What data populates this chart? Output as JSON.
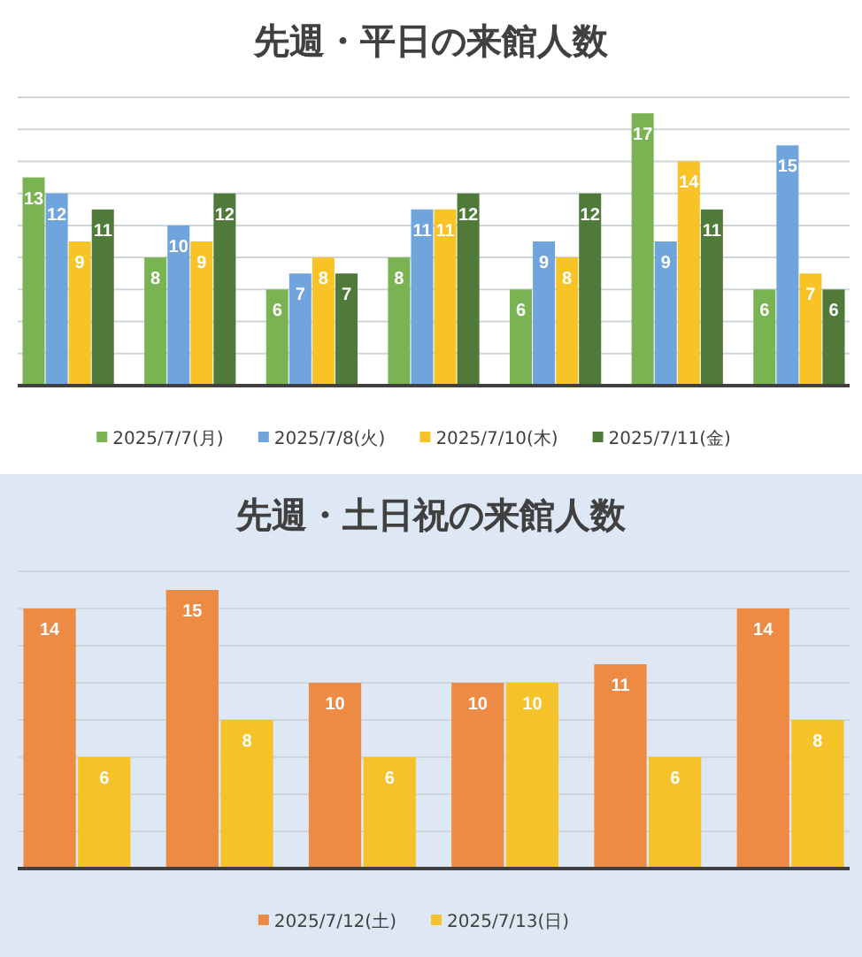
{
  "chart_data": [
    {
      "type": "bar",
      "title": "先週・平日の来館人数",
      "categories": [
        null,
        null,
        null,
        null,
        null,
        null,
        null
      ],
      "series": [
        {
          "name": "2025/7/7(月)",
          "color": "#79b352",
          "values": [
            13,
            8,
            6,
            8,
            6,
            17,
            6
          ]
        },
        {
          "name": "2025/7/8(火)",
          "color": "#6fa5dc",
          "values": [
            12,
            10,
            7,
            11,
            9,
            9,
            15
          ]
        },
        {
          "name": "2025/7/10(木)",
          "color": "#f7c325",
          "values": [
            9,
            9,
            8,
            11,
            8,
            14,
            7
          ]
        },
        {
          "name": "2025/7/11(金)",
          "color": "#4f7a3a",
          "values": [
            11,
            12,
            7,
            12,
            12,
            11,
            6
          ]
        }
      ],
      "ylim": [
        0,
        18
      ],
      "yticks": [
        {
          "value": 0,
          "label": null
        },
        {
          "value": 2,
          "label": null
        },
        {
          "value": 4,
          "label": null
        },
        {
          "value": 6,
          "label": null
        },
        {
          "value": 8,
          "label": null
        },
        {
          "value": 10,
          "label": null
        },
        {
          "value": 12,
          "label": null
        },
        {
          "value": 14,
          "label": null
        },
        {
          "value": 16,
          "label": null
        },
        {
          "value": 18,
          "label": null
        }
      ],
      "grid": "y",
      "legend": "bottom",
      "tick_labels": false,
      "data_labels": true
    },
    {
      "type": "bar",
      "title": "先週・土日祝の来館人数",
      "categories": [
        null,
        null,
        null,
        null,
        null,
        null
      ],
      "series": [
        {
          "name": "2025/7/12(土)",
          "color": "#ed8a44",
          "values": [
            14,
            15,
            10,
            10,
            11,
            14
          ]
        },
        {
          "name": "2025/7/13(日)",
          "color": "#f5c22a",
          "values": [
            6,
            8,
            6,
            10,
            6,
            8
          ]
        }
      ],
      "ylim": [
        0,
        16
      ],
      "yticks": [
        {
          "value": 0,
          "label": null
        },
        {
          "value": 2,
          "label": null
        },
        {
          "value": 4,
          "label": null
        },
        {
          "value": 6,
          "label": null
        },
        {
          "value": 8,
          "label": null
        },
        {
          "value": 10,
          "label": null
        },
        {
          "value": 12,
          "label": null
        },
        {
          "value": 14,
          "label": null
        },
        {
          "value": 16,
          "label": null
        }
      ],
      "grid": "y",
      "legend": "bottom",
      "tick_labels": false,
      "data_labels": true
    }
  ]
}
